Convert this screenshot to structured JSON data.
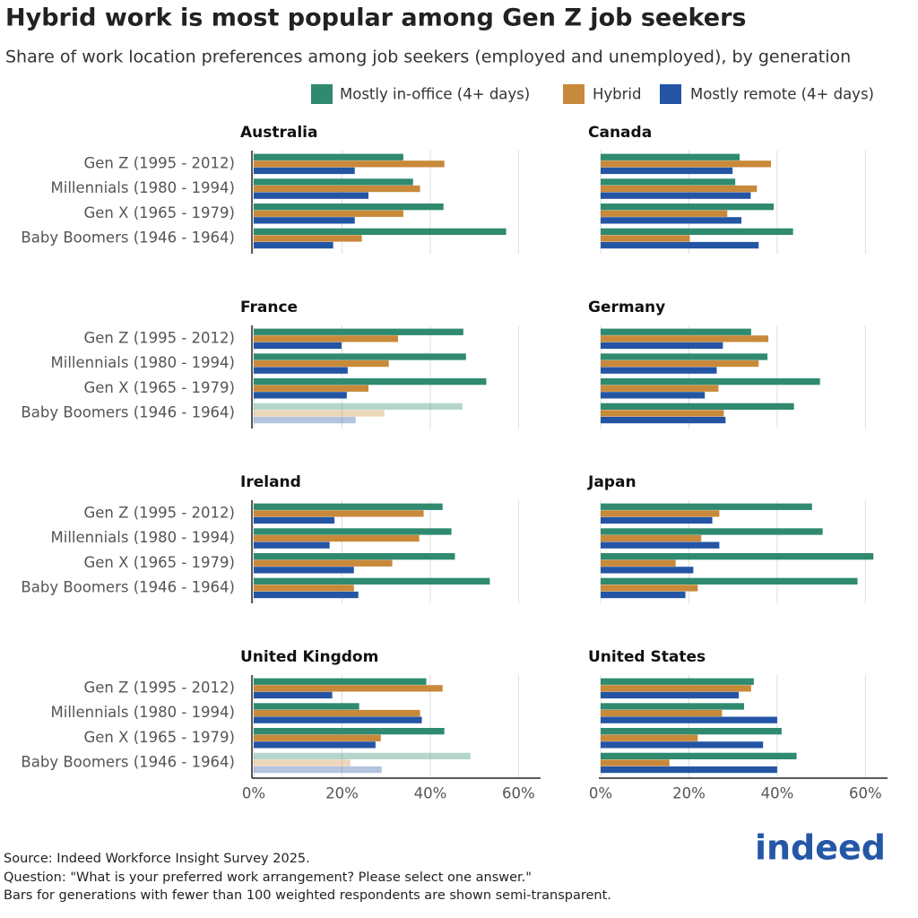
{
  "title": "Hybrid work is most popular among Gen Z job seekers",
  "subtitle": "Share of work location preferences among job seekers (employed and unemployed), by generation",
  "notes": [
    "Source: Indeed Workforce Insight Survey 2025.",
    "Question: \"What is your preferred work arrangement? Please select one answer.\"",
    "Bars for generations with fewer than 100 weighted respondents are shown semi-transparent."
  ],
  "logo": "indeed",
  "chart_data": [
    {
      "type": "bar",
      "orientation": "horizontal",
      "title": "Australia",
      "categories": [
        "Gen Z (1995 - 2012)",
        "Millennials (1980 - 1994)",
        "Gen X (1965 - 1979)",
        "Baby Boomers (1946 - 1964)"
      ],
      "faded": [
        false,
        false,
        false,
        false
      ],
      "series": [
        {
          "name": "Mostly in-office (4+ days)",
          "color": "#2f8a6f",
          "values": [
            33.9,
            36.1,
            43.0,
            57.2
          ]
        },
        {
          "name": "Hybrid",
          "color": "#c8893a",
          "values": [
            43.2,
            37.7,
            33.9,
            24.5
          ]
        },
        {
          "name": "Mostly remote (4+ days)",
          "color": "#2455a4",
          "values": [
            22.9,
            26.0,
            22.9,
            18.0
          ]
        }
      ],
      "xlim": [
        0,
        65
      ],
      "xticks": [
        0,
        20,
        40,
        60
      ],
      "grid": true
    },
    {
      "type": "bar",
      "orientation": "horizontal",
      "title": "Canada",
      "categories": [
        null,
        null,
        null,
        null
      ],
      "faded": [
        false,
        false,
        false,
        false
      ],
      "series": [
        {
          "name": "Mostly in-office (4+ days)",
          "color": "#2f8a6f",
          "values": [
            31.5,
            30.5,
            39.2,
            43.6
          ]
        },
        {
          "name": "Hybrid",
          "color": "#c8893a",
          "values": [
            38.6,
            35.4,
            28.7,
            20.2
          ]
        },
        {
          "name": "Mostly remote (4+ days)",
          "color": "#2455a4",
          "values": [
            29.9,
            34.0,
            31.9,
            35.8
          ]
        }
      ],
      "xlim": [
        0,
        65
      ],
      "xticks": [
        0,
        20,
        40,
        60
      ],
      "grid": true
    },
    {
      "type": "bar",
      "orientation": "horizontal",
      "title": "France",
      "categories": [
        "Gen Z (1995 - 2012)",
        "Millennials (1980 - 1994)",
        "Gen X (1965 - 1979)",
        "Baby Boomers (1946 - 1964)"
      ],
      "faded": [
        false,
        false,
        false,
        true
      ],
      "series": [
        {
          "name": "Mostly in-office (4+ days)",
          "color": "#2f8a6f",
          "values": [
            47.5,
            48.1,
            52.7,
            47.3
          ]
        },
        {
          "name": "Hybrid",
          "color": "#c8893a",
          "values": [
            32.7,
            30.6,
            26.0,
            29.6
          ]
        },
        {
          "name": "Mostly remote (4+ days)",
          "color": "#2455a4",
          "values": [
            19.9,
            21.3,
            21.1,
            23.1
          ]
        }
      ],
      "xlim": [
        0,
        65
      ],
      "xticks": [
        0,
        20,
        40,
        60
      ],
      "grid": true
    },
    {
      "type": "bar",
      "orientation": "horizontal",
      "title": "Germany",
      "categories": [
        null,
        null,
        null,
        null
      ],
      "faded": [
        false,
        false,
        false,
        false
      ],
      "series": [
        {
          "name": "Mostly in-office (4+ days)",
          "color": "#2f8a6f",
          "values": [
            34.1,
            37.8,
            49.7,
            43.8
          ]
        },
        {
          "name": "Hybrid",
          "color": "#c8893a",
          "values": [
            38.0,
            35.8,
            26.7,
            27.9
          ]
        },
        {
          "name": "Mostly remote (4+ days)",
          "color": "#2455a4",
          "values": [
            27.7,
            26.3,
            23.6,
            28.3
          ]
        }
      ],
      "xlim": [
        0,
        65
      ],
      "xticks": [
        0,
        20,
        40,
        60
      ],
      "grid": true
    },
    {
      "type": "bar",
      "orientation": "horizontal",
      "title": "Ireland",
      "categories": [
        "Gen Z (1995 - 2012)",
        "Millennials (1980 - 1994)",
        "Gen X (1965 - 1979)",
        "Baby Boomers (1946 - 1964)"
      ],
      "faded": [
        false,
        false,
        false,
        false
      ],
      "series": [
        {
          "name": "Mostly in-office (4+ days)",
          "color": "#2f8a6f",
          "values": [
            42.8,
            44.8,
            45.6,
            53.5
          ]
        },
        {
          "name": "Hybrid",
          "color": "#c8893a",
          "values": [
            38.5,
            37.5,
            31.4,
            22.7
          ]
        },
        {
          "name": "Mostly remote (4+ days)",
          "color": "#2455a4",
          "values": [
            18.3,
            17.2,
            22.7,
            23.7
          ]
        }
      ],
      "xlim": [
        0,
        65
      ],
      "xticks": [
        0,
        20,
        40,
        60
      ],
      "grid": true
    },
    {
      "type": "bar",
      "orientation": "horizontal",
      "title": "Japan",
      "categories": [
        null,
        null,
        null,
        null
      ],
      "faded": [
        false,
        false,
        false,
        false
      ],
      "series": [
        {
          "name": "Mostly in-office (4+ days)",
          "color": "#2f8a6f",
          "values": [
            47.9,
            50.3,
            61.8,
            58.2
          ]
        },
        {
          "name": "Hybrid",
          "color": "#c8893a",
          "values": [
            26.9,
            22.8,
            17.0,
            22.0
          ]
        },
        {
          "name": "Mostly remote (4+ days)",
          "color": "#2455a4",
          "values": [
            25.3,
            26.9,
            21.0,
            19.2
          ]
        }
      ],
      "xlim": [
        0,
        65
      ],
      "xticks": [
        0,
        20,
        40,
        60
      ],
      "grid": true
    },
    {
      "type": "bar",
      "orientation": "horizontal",
      "title": "United Kingdom",
      "categories": [
        "Gen Z (1995 - 2012)",
        "Millennials (1980 - 1994)",
        "Gen X (1965 - 1979)",
        "Baby Boomers (1946 - 1964)"
      ],
      "faded": [
        false,
        false,
        false,
        true
      ],
      "series": [
        {
          "name": "Mostly in-office (4+ days)",
          "color": "#2f8a6f",
          "values": [
            39.1,
            23.9,
            43.2,
            49.1
          ]
        },
        {
          "name": "Hybrid",
          "color": "#c8893a",
          "values": [
            42.8,
            37.7,
            28.8,
            21.9
          ]
        },
        {
          "name": "Mostly remote (4+ days)",
          "color": "#2455a4",
          "values": [
            17.8,
            38.1,
            27.6,
            29.0
          ]
        }
      ],
      "xlim": [
        0,
        65
      ],
      "xticks": [
        {
          "value": 0,
          "label": "0%"
        },
        {
          "value": 20,
          "label": "20%"
        },
        {
          "value": 40,
          "label": "40%"
        },
        {
          "value": 60,
          "label": "60%"
        }
      ],
      "grid": true
    },
    {
      "type": "bar",
      "orientation": "horizontal",
      "title": "United States",
      "categories": [
        null,
        null,
        null,
        null
      ],
      "faded": [
        false,
        false,
        false,
        false
      ],
      "series": [
        {
          "name": "Mostly in-office (4+ days)",
          "color": "#2f8a6f",
          "values": [
            34.7,
            32.5,
            41.0,
            44.4
          ]
        },
        {
          "name": "Hybrid",
          "color": "#c8893a",
          "values": [
            34.1,
            27.5,
            22.0,
            15.6
          ]
        },
        {
          "name": "Mostly remote (4+ days)",
          "color": "#2455a4",
          "values": [
            31.3,
            40.0,
            36.8,
            40.0
          ]
        }
      ],
      "xlim": [
        0,
        65
      ],
      "xticks": [
        {
          "value": 0,
          "label": "0%"
        },
        {
          "value": 20,
          "label": "20%"
        },
        {
          "value": 40,
          "label": "40%"
        },
        {
          "value": 60,
          "label": "60%"
        }
      ],
      "grid": true
    }
  ]
}
